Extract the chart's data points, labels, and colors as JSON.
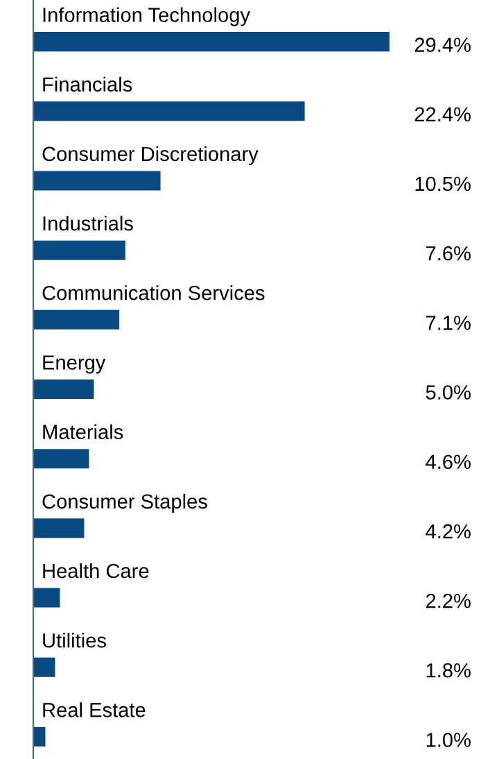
{
  "chart_data": {
    "type": "bar",
    "orientation": "horizontal",
    "data_labels": true,
    "color": "#0b4a80",
    "categories": [
      "Information Technology",
      "Financials",
      "Consumer Discretionary",
      "Industrials",
      "Communication Services",
      "Energy",
      "Materials",
      "Consumer Staples",
      "Health Care",
      "Utilities",
      "Real Estate"
    ],
    "values": [
      29.4,
      22.4,
      10.5,
      7.6,
      7.1,
      5.0,
      4.6,
      4.2,
      2.2,
      1.8,
      1.0
    ],
    "value_labels": [
      "29.4%",
      "22.4%",
      "10.5%",
      "7.6%",
      "7.1%",
      "5.0%",
      "4.6%",
      "4.2%",
      "2.2%",
      "1.8%",
      "1.0%"
    ]
  }
}
